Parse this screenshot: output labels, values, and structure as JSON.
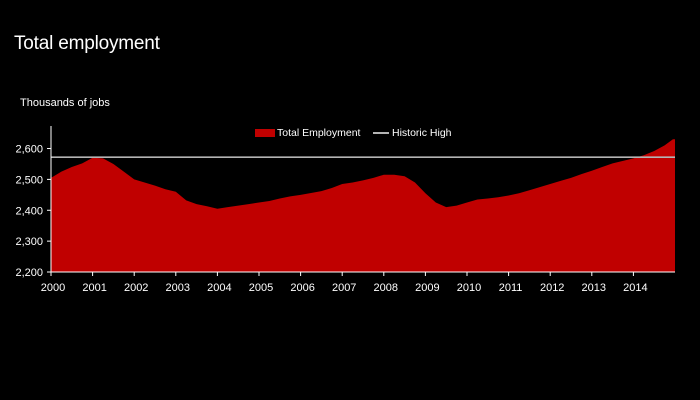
{
  "page": {
    "title": "Total employment"
  },
  "chart_data": {
    "type": "area",
    "title": "Total employment",
    "ylabel": "Thousands of jobs",
    "xlabel": "",
    "ylim": [
      2200,
      2660
    ],
    "xlim": [
      2000.0,
      2015.0
    ],
    "y_ticks": [
      "2,200",
      "2,300",
      "2,400",
      "2,500",
      "2,600"
    ],
    "x_ticks": [
      "2000",
      "2001",
      "2002",
      "2003",
      "2004",
      "2005",
      "2006",
      "2007",
      "2008",
      "2009",
      "2010",
      "2011",
      "2012",
      "2013",
      "2014"
    ],
    "grid": false,
    "legend_position": "top-center",
    "colors": {
      "area": "#c00000",
      "reference_line": "#b4b4b4",
      "background": "#000000"
    },
    "series": [
      {
        "name": "Total Employment",
        "x": [
          2000.0,
          2000.25,
          2000.5,
          2000.75,
          2001.0,
          2001.25,
          2001.5,
          2001.75,
          2002.0,
          2002.25,
          2002.5,
          2002.75,
          2003.0,
          2003.25,
          2003.5,
          2003.75,
          2004.0,
          2004.25,
          2004.5,
          2004.75,
          2005.0,
          2005.25,
          2005.5,
          2005.75,
          2006.0,
          2006.25,
          2006.5,
          2006.75,
          2007.0,
          2007.25,
          2007.5,
          2007.75,
          2008.0,
          2008.25,
          2008.5,
          2008.75,
          2009.0,
          2009.25,
          2009.5,
          2009.75,
          2010.0,
          2010.25,
          2010.5,
          2010.75,
          2011.0,
          2011.25,
          2011.5,
          2011.75,
          2012.0,
          2012.25,
          2012.5,
          2012.75,
          2013.0,
          2013.25,
          2013.5,
          2013.75,
          2014.0,
          2014.25,
          2014.5,
          2014.75,
          2014.95
        ],
        "values": [
          2505,
          2525,
          2540,
          2552,
          2570,
          2568,
          2550,
          2525,
          2500,
          2490,
          2480,
          2468,
          2460,
          2432,
          2420,
          2413,
          2405,
          2410,
          2415,
          2420,
          2425,
          2430,
          2438,
          2445,
          2450,
          2456,
          2462,
          2472,
          2485,
          2490,
          2497,
          2505,
          2515,
          2515,
          2510,
          2490,
          2455,
          2425,
          2410,
          2415,
          2425,
          2435,
          2438,
          2442,
          2448,
          2455,
          2465,
          2475,
          2485,
          2495,
          2505,
          2517,
          2528,
          2540,
          2552,
          2560,
          2568,
          2578,
          2592,
          2610,
          2630
        ]
      },
      {
        "name": "Historic High",
        "value": 2572
      }
    ]
  }
}
